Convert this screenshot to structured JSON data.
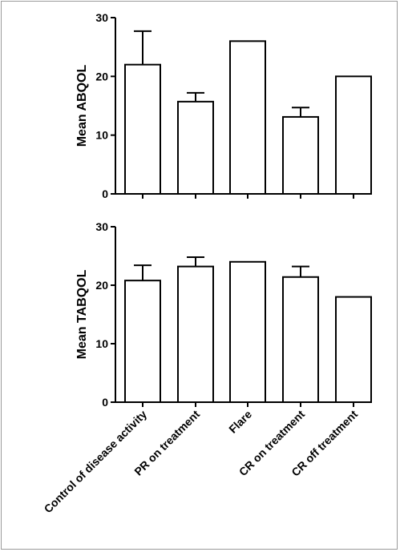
{
  "chart_data": [
    {
      "type": "bar",
      "ylabel": "Mean ABQOL",
      "xlabel": "",
      "title": "",
      "ylim": [
        0,
        30
      ],
      "yticks": [
        0,
        10,
        20,
        30
      ],
      "categories": [
        "Control of disease activity",
        "PR on treatment",
        "Flare",
        "CR on treatment",
        "CR off treatment"
      ],
      "values": [
        22,
        15.7,
        26,
        13.1,
        20
      ],
      "error": [
        5.7,
        1.5,
        0,
        1.6,
        0
      ],
      "show_category_labels": false
    },
    {
      "type": "bar",
      "ylabel": "Mean TABQOL",
      "xlabel": "",
      "title": "",
      "ylim": [
        0,
        30
      ],
      "yticks": [
        0,
        10,
        20,
        30
      ],
      "categories": [
        "Control of disease activity",
        "PR on treatment",
        "Flare",
        "CR on treatment",
        "CR off treatment"
      ],
      "values": [
        20.8,
        23.2,
        24,
        21.4,
        18
      ],
      "error": [
        2.6,
        1.6,
        0,
        1.8,
        0
      ],
      "show_category_labels": true
    }
  ],
  "colors": {
    "bar_fill": "#ffffff",
    "stroke": "#000000",
    "border": "#9a9a9a"
  }
}
